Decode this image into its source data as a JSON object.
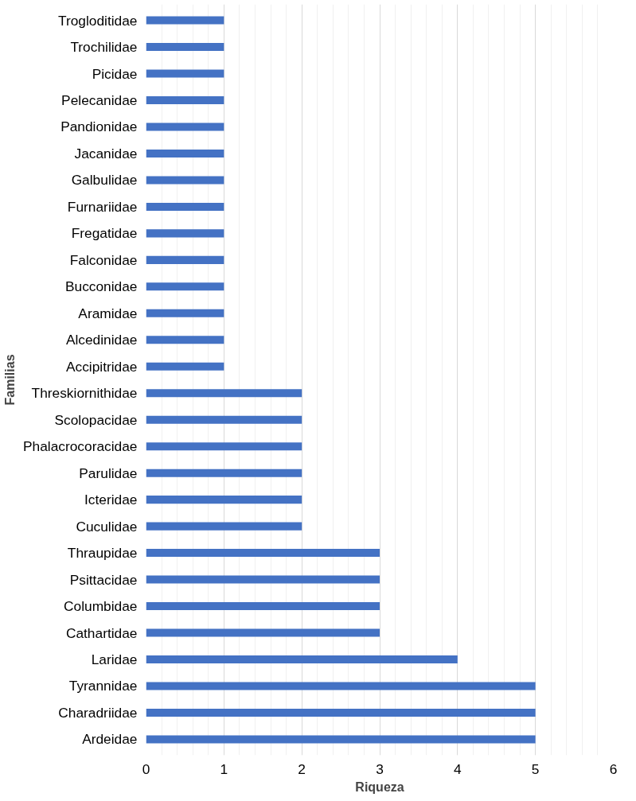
{
  "chart_data": {
    "type": "bar",
    "orientation": "horizontal",
    "xlabel": "Riqueza",
    "ylabel": "Familias",
    "categories": [
      "Trogloditidae",
      "Trochilidae",
      "Picidae",
      "Pelecanidae",
      "Pandionidae",
      "Jacanidae",
      "Galbulidae",
      "Furnariidae",
      "Fregatidae",
      "Falconidae",
      "Bucconidae",
      "Aramidae",
      "Alcedinidae",
      "Accipitridae",
      "Threskiornithidae",
      "Scolopacidae",
      "Phalacrocoracidae",
      "Parulidae",
      "Icteridae",
      "Cuculidae",
      "Thraupidae",
      "Psittacidae",
      "Columbidae",
      "Cathartidae",
      "Laridae",
      "Tyrannidae",
      "Charadriidae",
      "Ardeidae"
    ],
    "values": [
      1,
      1,
      1,
      1,
      1,
      1,
      1,
      1,
      1,
      1,
      1,
      1,
      1,
      1,
      2,
      2,
      2,
      2,
      2,
      2,
      3,
      3,
      3,
      3,
      4,
      5,
      5,
      5
    ],
    "color": "#4472c4",
    "xlim": [
      0,
      6
    ],
    "xticks": [
      0,
      1,
      2,
      3,
      4,
      5,
      6
    ],
    "grid": "x"
  }
}
